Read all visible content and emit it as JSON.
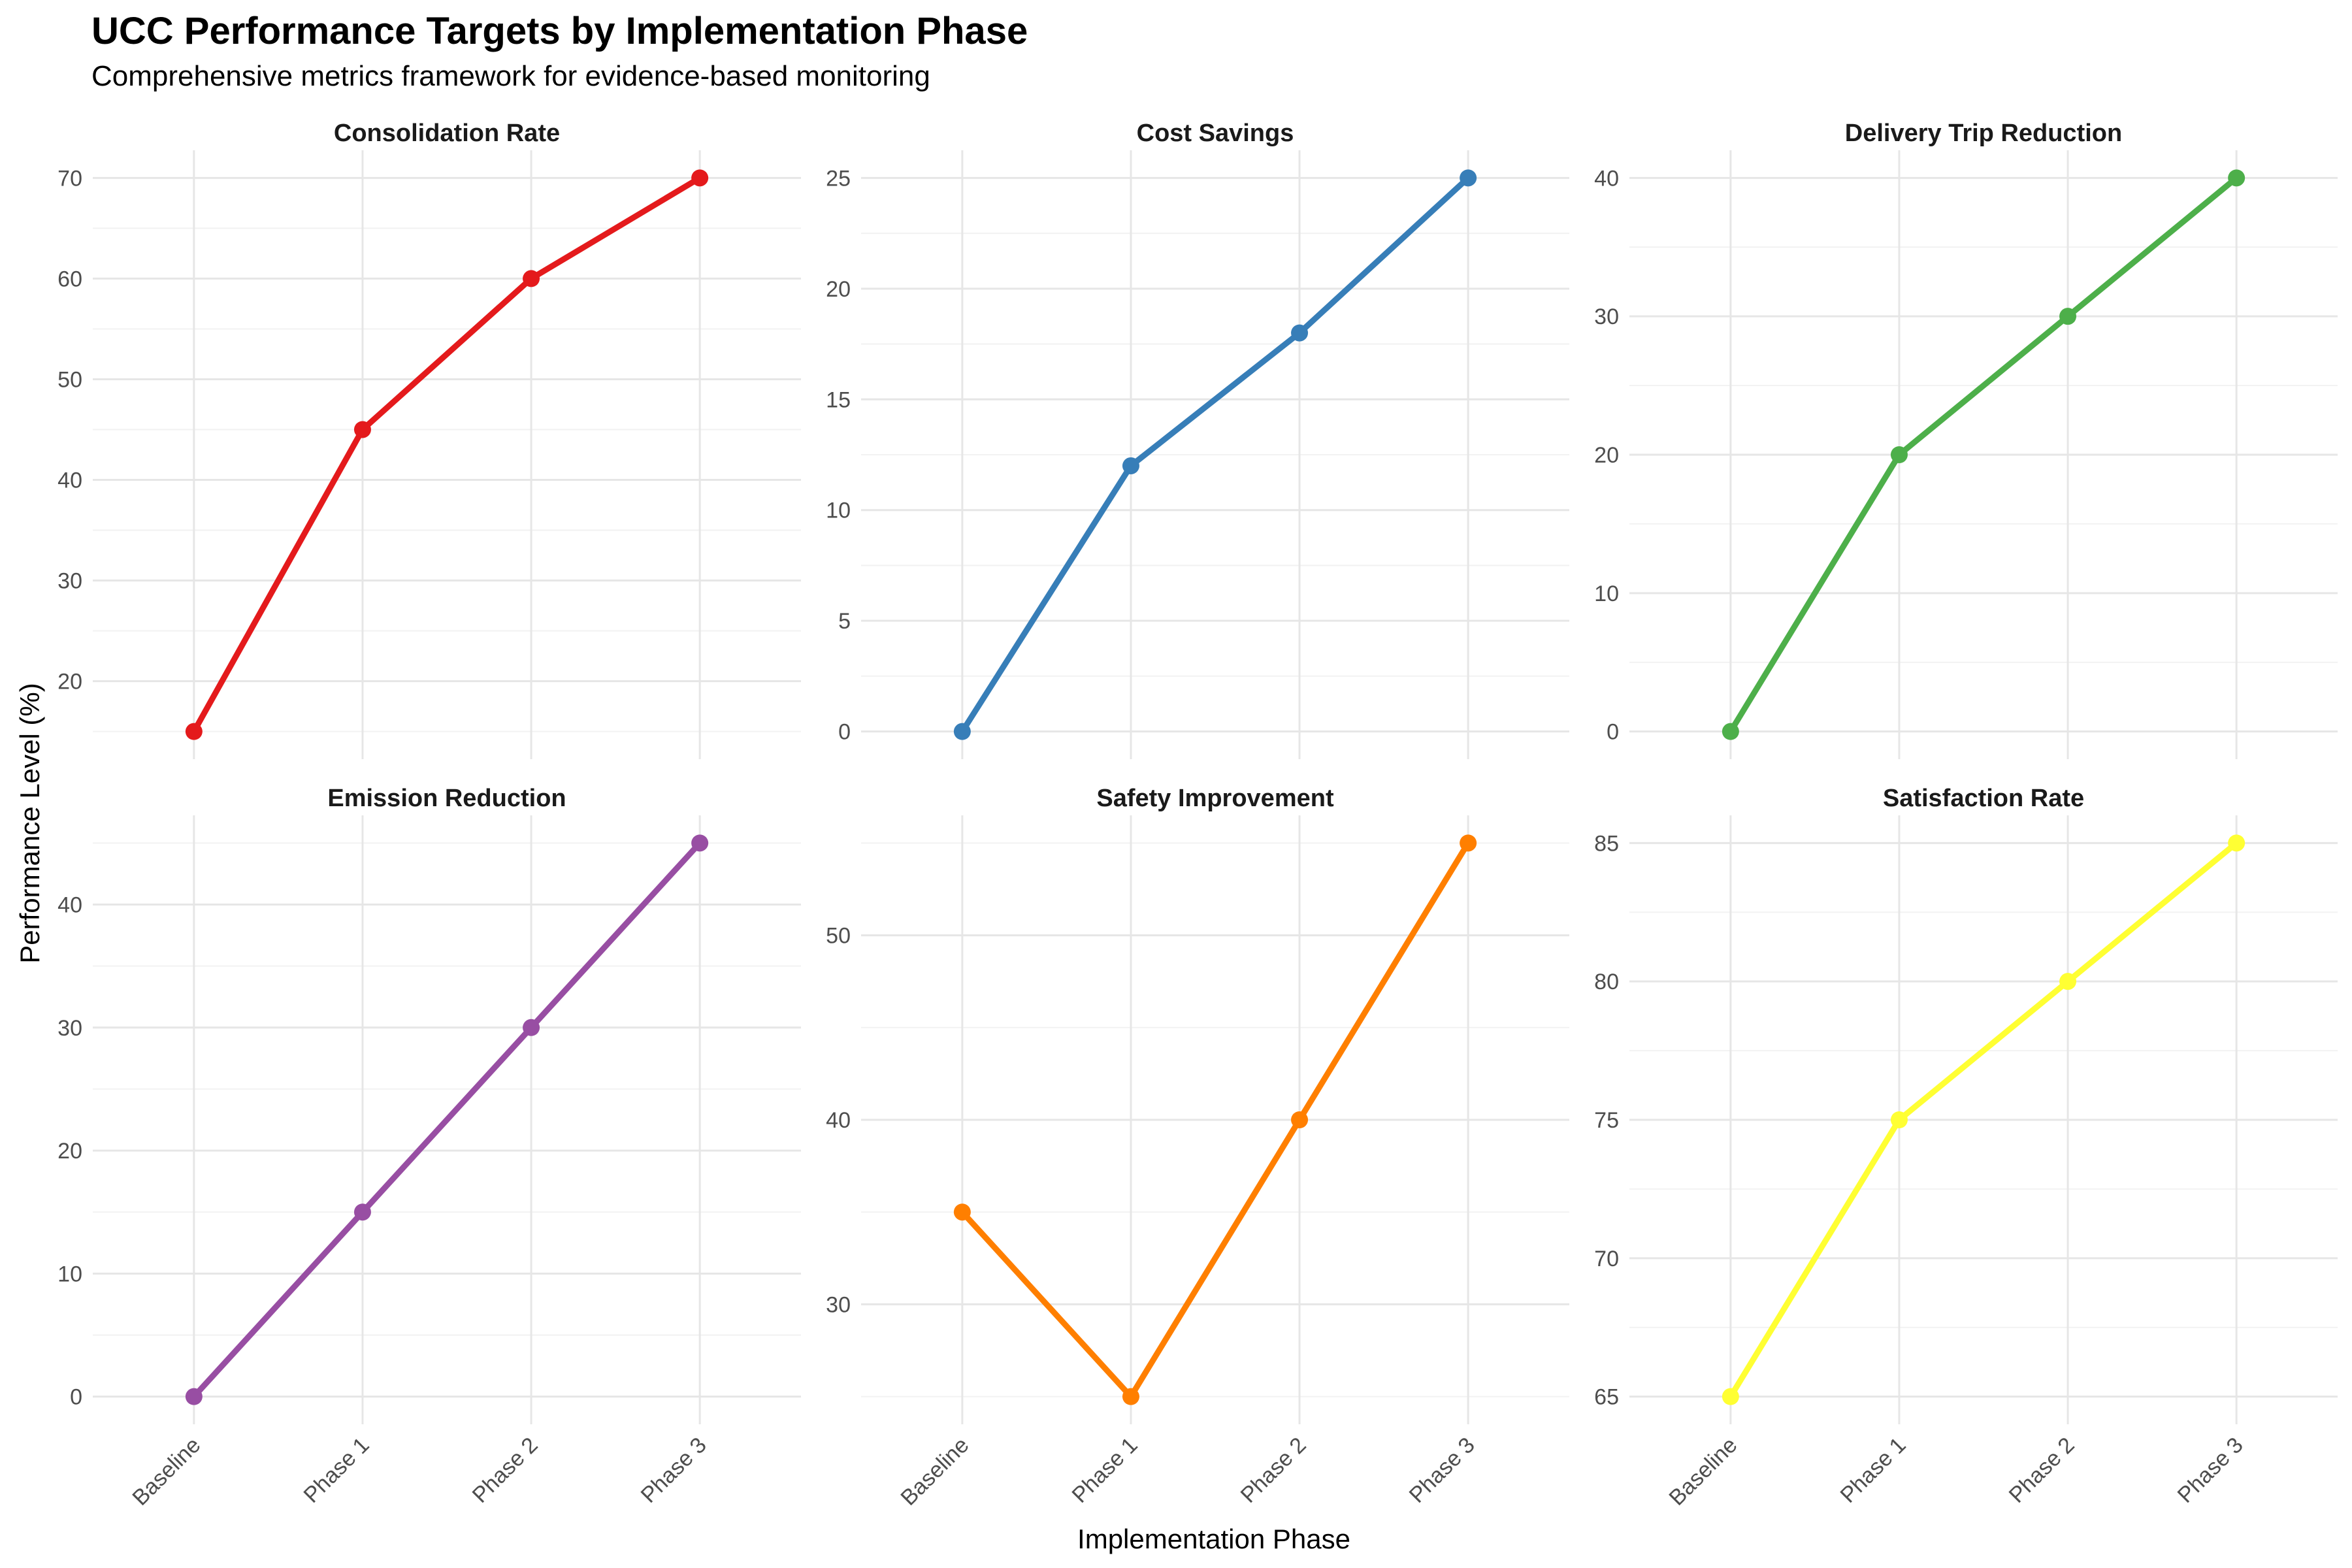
{
  "title": "UCC Performance Targets by Implementation Phase",
  "subtitle": "Comprehensive metrics framework for evidence-based monitoring",
  "xlabel": "Implementation Phase",
  "ylabel": "Performance Level (%)",
  "chart_data": [
    {
      "type": "line",
      "title": "Consolidation Rate",
      "color": "#E41A1C",
      "categories": [
        "Baseline",
        "Phase 1",
        "Phase 2",
        "Phase 3"
      ],
      "values": [
        15,
        45,
        60,
        70
      ],
      "ylim": [
        12.25,
        72.75
      ],
      "yticks": [
        20,
        30,
        40,
        50,
        60,
        70
      ]
    },
    {
      "type": "line",
      "title": "Cost Savings",
      "color": "#377EB8",
      "categories": [
        "Baseline",
        "Phase 1",
        "Phase 2",
        "Phase 3"
      ],
      "values": [
        0,
        12,
        18,
        25
      ],
      "ylim": [
        -1.25,
        26.25
      ],
      "yticks": [
        0,
        5,
        10,
        15,
        20,
        25
      ]
    },
    {
      "type": "line",
      "title": "Delivery Trip Reduction",
      "color": "#4DAF4A",
      "categories": [
        "Baseline",
        "Phase 1",
        "Phase 2",
        "Phase 3"
      ],
      "values": [
        0,
        20,
        30,
        40
      ],
      "ylim": [
        -2,
        42
      ],
      "yticks": [
        0,
        10,
        20,
        30,
        40
      ]
    },
    {
      "type": "line",
      "title": "Emission Reduction",
      "color": "#984EA3",
      "categories": [
        "Baseline",
        "Phase 1",
        "Phase 2",
        "Phase 3"
      ],
      "values": [
        0,
        15,
        30,
        45
      ],
      "ylim": [
        -2.25,
        47.25
      ],
      "yticks": [
        0,
        10,
        20,
        30,
        40
      ]
    },
    {
      "type": "line",
      "title": "Safety Improvement",
      "color": "#FF7F00",
      "categories": [
        "Baseline",
        "Phase 1",
        "Phase 2",
        "Phase 3"
      ],
      "values": [
        35,
        25,
        40,
        55
      ],
      "ylim": [
        23.5,
        56.5
      ],
      "yticks": [
        30,
        40,
        50
      ]
    },
    {
      "type": "line",
      "title": "Satisfaction Rate",
      "color": "#FFFF33",
      "categories": [
        "Baseline",
        "Phase 1",
        "Phase 2",
        "Phase 3"
      ],
      "values": [
        65,
        75,
        80,
        85
      ],
      "ylim": [
        64,
        86
      ],
      "yticks": [
        65,
        70,
        75,
        80,
        85
      ]
    }
  ]
}
